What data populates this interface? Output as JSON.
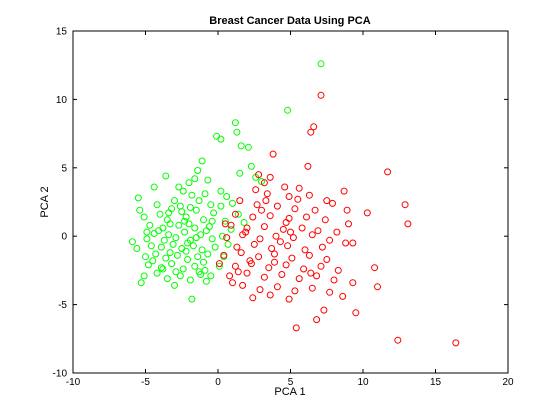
{
  "chart_data": {
    "type": "scatter",
    "title": "Breast Cancer Data Using PCA",
    "xlabel": "PCA 1",
    "ylabel": "PCA 2",
    "xlim": [
      -10,
      20
    ],
    "ylim": [
      -10,
      15
    ],
    "xticks": [
      -10,
      -5,
      0,
      5,
      10,
      15,
      20
    ],
    "yticks": [
      -10,
      -5,
      0,
      5,
      10,
      15
    ],
    "grid": false,
    "legend": "none",
    "marker": "circle-open",
    "series": [
      {
        "color": "#00ff00",
        "points": [
          [
            7.1,
            12.6
          ],
          [
            4.8,
            9.2
          ],
          [
            -0.1,
            7.3
          ],
          [
            0.2,
            7.1
          ],
          [
            1.2,
            8.3
          ],
          [
            1.3,
            7.6
          ],
          [
            1.6,
            6.6
          ],
          [
            2.1,
            6.5
          ],
          [
            2.3,
            5.1
          ],
          [
            1.5,
            4.6
          ],
          [
            2.6,
            4.3
          ],
          [
            3.0,
            4.0
          ],
          [
            -1.1,
            5.5
          ],
          [
            -1.4,
            4.8
          ],
          [
            -0.7,
            4.1
          ],
          [
            -3.6,
            4.4
          ],
          [
            -2.0,
            3.9
          ],
          [
            -4.4,
            3.6
          ],
          [
            -2.4,
            3.3
          ],
          [
            -1.8,
            3.0
          ],
          [
            -5.5,
            2.8
          ],
          [
            -0.9,
            3.1
          ],
          [
            0.6,
            2.9
          ],
          [
            1.0,
            2.4
          ],
          [
            0.2,
            2.2
          ],
          [
            -0.5,
            2.3
          ],
          [
            -3.0,
            2.6
          ],
          [
            -4.2,
            2.3
          ],
          [
            -3.2,
            2.0
          ],
          [
            -4.0,
            1.6
          ],
          [
            -2.5,
            1.8
          ],
          [
            -1.5,
            1.9
          ],
          [
            -0.3,
            1.7
          ],
          [
            1.4,
            1.6
          ],
          [
            -5.1,
            1.4
          ],
          [
            -3.5,
            1.2
          ],
          [
            -2.2,
            1.4
          ],
          [
            -1.0,
            1.2
          ],
          [
            0.5,
            1.1
          ],
          [
            1.8,
            1.0
          ],
          [
            -4.7,
            0.8
          ],
          [
            -3.8,
            0.6
          ],
          [
            -2.7,
            0.8
          ],
          [
            -1.6,
            0.6
          ],
          [
            -0.6,
            0.7
          ],
          [
            0.9,
            0.5
          ],
          [
            -5.9,
            -0.4
          ],
          [
            -4.9,
            -0.2
          ],
          [
            -4.4,
            0.2
          ],
          [
            -3.4,
            0.1
          ],
          [
            -2.9,
            -0.1
          ],
          [
            -2.3,
            0.3
          ],
          [
            -1.9,
            -0.3
          ],
          [
            -1.2,
            0.1
          ],
          [
            -0.4,
            -0.2
          ],
          [
            0.3,
            0.0
          ],
          [
            -5.6,
            -0.9
          ],
          [
            -4.6,
            -0.7
          ],
          [
            -3.9,
            -0.8
          ],
          [
            -3.1,
            -0.6
          ],
          [
            -2.5,
            -0.9
          ],
          [
            -1.7,
            -0.7
          ],
          [
            -1.1,
            -1.0
          ],
          [
            -0.2,
            -0.8
          ],
          [
            -5.0,
            -1.5
          ],
          [
            -4.3,
            -1.3
          ],
          [
            -3.6,
            -1.6
          ],
          [
            -2.8,
            -1.4
          ],
          [
            -2.1,
            -1.7
          ],
          [
            -1.4,
            -1.5
          ],
          [
            -0.7,
            -1.3
          ],
          [
            0.4,
            -1.5
          ],
          [
            -4.8,
            -2.1
          ],
          [
            -3.9,
            -2.3
          ],
          [
            -3.2,
            -2.0
          ],
          [
            -2.4,
            -2.4
          ],
          [
            -1.6,
            -2.2
          ],
          [
            -0.9,
            -2.5
          ],
          [
            0.1,
            -2.2
          ],
          [
            -5.1,
            -2.9
          ],
          [
            -4.2,
            -2.7
          ],
          [
            -3.5,
            -3.1
          ],
          [
            -2.6,
            -2.9
          ],
          [
            -1.9,
            -3.2
          ],
          [
            -1.2,
            -2.8
          ],
          [
            -5.3,
            -3.4
          ],
          [
            -3.0,
            -3.6
          ],
          [
            -0.8,
            -3.3
          ],
          [
            -1.8,
            -4.6
          ],
          [
            -3.3,
            0.9
          ],
          [
            -2.0,
            0.9
          ],
          [
            -1.3,
            2.6
          ],
          [
            -2.6,
            2.2
          ],
          [
            -4.1,
            0.4
          ],
          [
            -3.7,
            -0.3
          ],
          [
            -2.2,
            -1.1
          ],
          [
            -1.5,
            -0.1
          ],
          [
            -0.8,
            0.4
          ],
          [
            -3.4,
            1.7
          ],
          [
            -4.5,
            -1.8
          ],
          [
            -2.9,
            -2.6
          ],
          [
            -2.3,
            1.1
          ],
          [
            -1.0,
            -1.9
          ],
          [
            0.7,
            -0.6
          ],
          [
            -1.9,
            2.1
          ],
          [
            0.2,
            3.3
          ],
          [
            -0.4,
            1.1
          ],
          [
            -2.7,
            3.6
          ],
          [
            -1.6,
            4.2
          ],
          [
            -3.8,
            -2.4
          ],
          [
            -4.9,
            0.3
          ],
          [
            -5.4,
            1.9
          ],
          [
            -2.1,
            -0.5
          ],
          [
            -3.3,
            -1.2
          ],
          [
            -1.3,
            -2.6
          ],
          [
            -0.5,
            -2.9
          ]
        ]
      },
      {
        "color": "#ff0000",
        "points": [
          [
            7.1,
            10.3
          ],
          [
            6.6,
            8.0
          ],
          [
            6.4,
            7.6
          ],
          [
            3.8,
            6.0
          ],
          [
            6.2,
            5.1
          ],
          [
            2.8,
            4.5
          ],
          [
            3.6,
            4.3
          ],
          [
            3.2,
            3.9
          ],
          [
            4.6,
            3.6
          ],
          [
            5.6,
            3.5
          ],
          [
            3.4,
            3.1
          ],
          [
            4.9,
            2.9
          ],
          [
            6.3,
            3.0
          ],
          [
            7.5,
            2.6
          ],
          [
            8.7,
            3.3
          ],
          [
            7.9,
            2.4
          ],
          [
            1.5,
            2.6
          ],
          [
            2.7,
            2.3
          ],
          [
            4.1,
            2.2
          ],
          [
            5.3,
            2.0
          ],
          [
            6.7,
            1.9
          ],
          [
            8.9,
            1.9
          ],
          [
            10.3,
            1.7
          ],
          [
            12.9,
            2.3
          ],
          [
            11.7,
            4.7
          ],
          [
            1.2,
            1.6
          ],
          [
            2.4,
            1.4
          ],
          [
            3.6,
            1.5
          ],
          [
            4.9,
            1.3
          ],
          [
            6.1,
            1.4
          ],
          [
            7.4,
            1.2
          ],
          [
            9.0,
            0.9
          ],
          [
            13.1,
            0.9
          ],
          [
            0.9,
            0.8
          ],
          [
            2.0,
            0.6
          ],
          [
            3.2,
            0.7
          ],
          [
            4.5,
            0.5
          ],
          [
            5.8,
            0.6
          ],
          [
            6.9,
            0.4
          ],
          [
            8.2,
            0.3
          ],
          [
            0.6,
            -0.1
          ],
          [
            1.7,
            0.1
          ],
          [
            2.9,
            -0.2
          ],
          [
            4.0,
            0.0
          ],
          [
            5.2,
            -0.1
          ],
          [
            6.5,
            0.1
          ],
          [
            7.7,
            -0.3
          ],
          [
            8.8,
            -0.5
          ],
          [
            9.3,
            -0.5
          ],
          [
            1.3,
            -0.8
          ],
          [
            2.5,
            -0.6
          ],
          [
            3.7,
            -0.9
          ],
          [
            4.8,
            -0.7
          ],
          [
            6.0,
            -1.0
          ],
          [
            7.2,
            -0.8
          ],
          [
            0.4,
            -1.4
          ],
          [
            1.6,
            -1.2
          ],
          [
            2.8,
            -1.5
          ],
          [
            3.9,
            -1.3
          ],
          [
            5.1,
            -1.6
          ],
          [
            6.3,
            -1.4
          ],
          [
            7.5,
            -1.7
          ],
          [
            0.1,
            -2.0
          ],
          [
            1.2,
            -2.2
          ],
          [
            2.3,
            -2.0
          ],
          [
            3.5,
            -2.3
          ],
          [
            4.7,
            -2.1
          ],
          [
            5.9,
            -2.4
          ],
          [
            7.1,
            -2.2
          ],
          [
            8.3,
            -2.5
          ],
          [
            10.8,
            -2.3
          ],
          [
            0.8,
            -2.9
          ],
          [
            2.0,
            -2.7
          ],
          [
            3.2,
            -3.0
          ],
          [
            4.4,
            -2.8
          ],
          [
            5.6,
            -3.1
          ],
          [
            6.8,
            -2.9
          ],
          [
            8.0,
            -3.2
          ],
          [
            9.3,
            -3.4
          ],
          [
            11.0,
            -3.7
          ],
          [
            1.7,
            -3.6
          ],
          [
            2.9,
            -3.9
          ],
          [
            4.1,
            -3.7
          ],
          [
            5.3,
            -4.0
          ],
          [
            6.5,
            -3.8
          ],
          [
            7.7,
            -4.1
          ],
          [
            8.6,
            -4.4
          ],
          [
            2.4,
            -4.5
          ],
          [
            3.6,
            -4.3
          ],
          [
            4.9,
            -4.6
          ],
          [
            9.5,
            -5.6
          ],
          [
            7.3,
            -5.4
          ],
          [
            6.8,
            -6.1
          ],
          [
            5.4,
            -6.7
          ],
          [
            12.4,
            -7.6
          ],
          [
            16.4,
            -7.8
          ],
          [
            1.9,
            0.3
          ],
          [
            3.0,
            1.9
          ],
          [
            4.3,
            -0.4
          ],
          [
            5.5,
            2.7
          ],
          [
            2.2,
            -1.8
          ],
          [
            3.3,
            2.6
          ],
          [
            4.7,
            1.0
          ],
          [
            6.4,
            -2.7
          ],
          [
            1.0,
            -3.4
          ],
          [
            2.6,
            3.4
          ],
          [
            3.9,
            -1.9
          ],
          [
            5.0,
            0.3
          ],
          [
            0.5,
            0.9
          ],
          [
            1.4,
            -2.6
          ]
        ]
      }
    ]
  }
}
